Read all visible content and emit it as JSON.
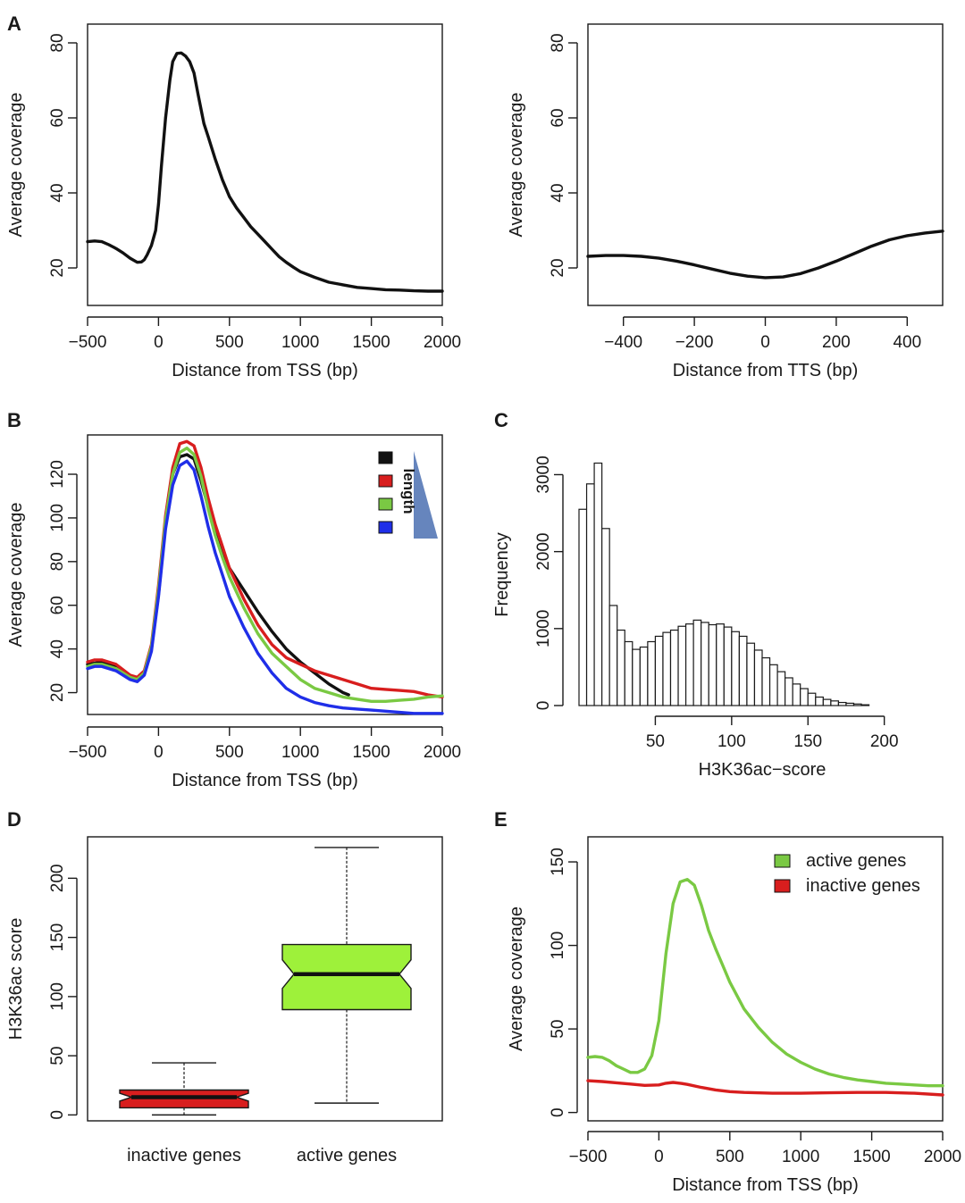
{
  "panel_labels": {
    "a": "A",
    "b": "B",
    "c": "C",
    "d": "D",
    "e": "E"
  },
  "chart_data": [
    {
      "id": "A1",
      "type": "line",
      "xlabel": "Distance from TSS (bp)",
      "ylabel": "Average coverage",
      "xlim": [
        -500,
        2000
      ],
      "ylim": [
        10,
        85
      ],
      "xticks": [
        -500,
        0,
        500,
        1000,
        1500,
        2000
      ],
      "yticks": [
        20,
        40,
        60,
        80
      ],
      "color": "#111111",
      "series": [
        {
          "x": [
            -500,
            -450,
            -400,
            -350,
            -300,
            -250,
            -200,
            -150,
            -120,
            -100,
            -80,
            -50,
            -20,
            0,
            20,
            50,
            80,
            100,
            130,
            160,
            190,
            220,
            250,
            280,
            320,
            350,
            400,
            450,
            500,
            550,
            600,
            650,
            700,
            750,
            800,
            850,
            900,
            950,
            1000,
            1100,
            1200,
            1300,
            1400,
            1500,
            1600,
            1700,
            1800,
            1900,
            2000
          ],
          "y": [
            27,
            27.2,
            27,
            26.2,
            25.2,
            24,
            22.6,
            21.5,
            21.6,
            22.2,
            23.5,
            26,
            30,
            37,
            47,
            60,
            70,
            75,
            77.2,
            77.3,
            76.5,
            75,
            72,
            66,
            58.5,
            55,
            49,
            43.5,
            39,
            36,
            33.5,
            31,
            29,
            27,
            25,
            23,
            21.5,
            20.2,
            19,
            17.5,
            16.2,
            15.5,
            14.8,
            14.5,
            14.2,
            14.1,
            13.9,
            13.8,
            13.8
          ]
        }
      ]
    },
    {
      "id": "A2",
      "type": "line",
      "xlabel": "Distance from TTS (bp)",
      "ylabel": "Average coverage",
      "xlim": [
        -500,
        500
      ],
      "ylim": [
        10,
        85
      ],
      "xticks": [
        -400,
        -200,
        0,
        200,
        400
      ],
      "yticks": [
        20,
        40,
        60,
        80
      ],
      "color": "#111111",
      "series": [
        {
          "x": [
            -500,
            -450,
            -400,
            -350,
            -300,
            -250,
            -200,
            -150,
            -100,
            -50,
            0,
            50,
            100,
            150,
            200,
            250,
            300,
            350,
            400,
            450,
            500
          ],
          "y": [
            23.1,
            23.3,
            23.3,
            23.1,
            22.6,
            21.8,
            20.8,
            19.7,
            18.6,
            17.8,
            17.4,
            17.6,
            18.5,
            20,
            21.8,
            23.8,
            25.8,
            27.5,
            28.6,
            29.3,
            29.8
          ]
        }
      ]
    },
    {
      "id": "B",
      "type": "line",
      "xlabel": "Distance from TSS (bp)",
      "ylabel": "Average coverage",
      "xlim": [
        -500,
        2000
      ],
      "ylim": [
        10,
        138
      ],
      "xticks": [
        -500,
        0,
        500,
        1000,
        1500,
        2000
      ],
      "yticks": [
        20,
        40,
        60,
        80,
        100,
        120
      ],
      "legend": {
        "position": "top-right",
        "label": "length",
        "colors": [
          "#111111",
          "#d81e1e",
          "#7ac943",
          "#1f2ee8"
        ]
      },
      "series": [
        {
          "color": "#111111",
          "x": [
            -500,
            -400,
            -300,
            -200,
            -150,
            -100,
            -50,
            0,
            50,
            100,
            150,
            200,
            250,
            300,
            350,
            400,
            450,
            500,
            600,
            700,
            800,
            900,
            1000,
            1100,
            1200,
            1300,
            1340
          ],
          "y": [
            33,
            34,
            32,
            27,
            26,
            29,
            40,
            65,
            97,
            120,
            128,
            129,
            127,
            117,
            105,
            93,
            84,
            77,
            67,
            57,
            48,
            40,
            34,
            29,
            24,
            20,
            19
          ]
        },
        {
          "color": "#d81e1e",
          "x": [
            -500,
            -450,
            -400,
            -300,
            -200,
            -150,
            -100,
            -50,
            0,
            50,
            100,
            150,
            200,
            250,
            300,
            350,
            400,
            450,
            500,
            600,
            700,
            800,
            900,
            1000,
            1100,
            1200,
            1300,
            1400,
            1500,
            1600,
            1700,
            1800,
            1900,
            2000
          ],
          "y": [
            34,
            35,
            35,
            33,
            28,
            27,
            30,
            42,
            69,
            101,
            123,
            134,
            135,
            133,
            123,
            109,
            97,
            87,
            77,
            63,
            51,
            42,
            36,
            33,
            30,
            28,
            26,
            24,
            22,
            21.5,
            21,
            20.5,
            19,
            18
          ]
        },
        {
          "color": "#7ac943",
          "x": [
            -500,
            -450,
            -400,
            -300,
            -200,
            -150,
            -100,
            -50,
            0,
            50,
            100,
            150,
            200,
            250,
            300,
            350,
            400,
            450,
            500,
            600,
            700,
            800,
            900,
            1000,
            1100,
            1200,
            1300,
            1400,
            1500,
            1600,
            1700,
            1800,
            1900,
            2000
          ],
          "y": [
            32,
            33,
            33,
            31,
            27,
            26,
            29,
            41,
            67,
            99,
            120,
            130,
            132,
            129,
            119,
            104,
            92,
            82,
            73,
            59,
            47,
            38,
            32,
            26,
            22,
            20,
            18,
            17,
            16,
            16,
            16.5,
            17,
            18,
            18.5
          ]
        },
        {
          "color": "#1f2ee8",
          "x": [
            -500,
            -450,
            -400,
            -300,
            -200,
            -150,
            -100,
            -50,
            0,
            50,
            100,
            150,
            200,
            250,
            300,
            350,
            400,
            450,
            500,
            600,
            700,
            800,
            900,
            1000,
            1100,
            1200,
            1300,
            1400,
            1500,
            1600,
            1700,
            1800,
            1900,
            2000
          ],
          "y": [
            31,
            32,
            32,
            30,
            26,
            25,
            28,
            39,
            64,
            95,
            115,
            124,
            126,
            122,
            110,
            96,
            84,
            74,
            64,
            50,
            38,
            29,
            22,
            18,
            15.5,
            14,
            13,
            12.5,
            12,
            11.5,
            11,
            10.5,
            10.5,
            10.5
          ]
        }
      ]
    },
    {
      "id": "C",
      "type": "bar",
      "xlabel": "H3K36ac−score",
      "ylabel": "Frequency",
      "xlim": [
        0,
        240
      ],
      "ylim": [
        0,
        3400
      ],
      "xticks": [
        50,
        100,
        150,
        200
      ],
      "yticks": [
        0,
        1000,
        2000,
        3000
      ],
      "bin_width": 5,
      "bin_start": 0,
      "values": [
        2550,
        2880,
        3150,
        2300,
        1300,
        980,
        830,
        730,
        760,
        830,
        900,
        950,
        980,
        1030,
        1060,
        1110,
        1080,
        1050,
        1060,
        1020,
        960,
        900,
        810,
        720,
        620,
        530,
        440,
        360,
        280,
        220,
        160,
        110,
        80,
        60,
        40,
        30,
        20,
        10
      ]
    },
    {
      "id": "D",
      "type": "box",
      "ylabel": "H3K36ac score",
      "ylim": [
        -5,
        235
      ],
      "yticks": [
        0,
        50,
        100,
        150,
        200
      ],
      "categories": [
        "inactive genes",
        "active genes"
      ],
      "boxes": [
        {
          "name": "inactive genes",
          "color": "#d81e1e",
          "whisker_low": 0,
          "q1": 6,
          "median": 15,
          "q3": 21,
          "whisker_high": 44
        },
        {
          "name": "active genes",
          "color": "#9ef13a",
          "whisker_low": 10,
          "q1": 89,
          "median": 119,
          "q3": 144,
          "whisker_high": 226
        }
      ]
    },
    {
      "id": "E",
      "type": "line",
      "xlabel": "Distance from TSS (bp)",
      "ylabel": "Average coverage",
      "xlim": [
        -500,
        2000
      ],
      "ylim": [
        -5,
        165
      ],
      "xticks": [
        -500,
        0,
        500,
        1000,
        1500,
        2000
      ],
      "yticks": [
        0,
        50,
        100,
        150
      ],
      "legend": {
        "position": "top-right"
      },
      "series": [
        {
          "name": "active genes",
          "color": "#7ac943",
          "x": [
            -500,
            -450,
            -400,
            -350,
            -300,
            -250,
            -200,
            -150,
            -100,
            -50,
            0,
            50,
            100,
            150,
            200,
            250,
            300,
            350,
            400,
            450,
            500,
            600,
            700,
            800,
            900,
            1000,
            1100,
            1200,
            1300,
            1400,
            1500,
            1600,
            1700,
            1800,
            1900,
            2000
          ],
          "y": [
            33,
            33.5,
            33,
            31,
            28,
            26,
            24,
            24,
            26,
            34,
            55,
            95,
            125,
            138,
            139.5,
            136,
            124,
            109,
            98,
            88,
            78,
            62,
            51,
            42,
            35,
            30,
            26,
            23,
            21,
            19.5,
            18.5,
            17.5,
            17,
            16.5,
            16,
            16
          ]
        },
        {
          "name": "inactive genes",
          "color": "#d81e1e",
          "x": [
            -500,
            -400,
            -300,
            -200,
            -100,
            0,
            50,
            100,
            150,
            200,
            300,
            400,
            500,
            600,
            800,
            1000,
            1200,
            1400,
            1600,
            1800,
            2000
          ],
          "y": [
            19,
            18.5,
            17.8,
            17,
            16.2,
            16.5,
            17.5,
            18,
            17.5,
            16.8,
            15,
            13.5,
            12.5,
            12,
            11.5,
            11.5,
            11.8,
            12,
            12,
            11.5,
            10.5
          ]
        }
      ]
    }
  ]
}
